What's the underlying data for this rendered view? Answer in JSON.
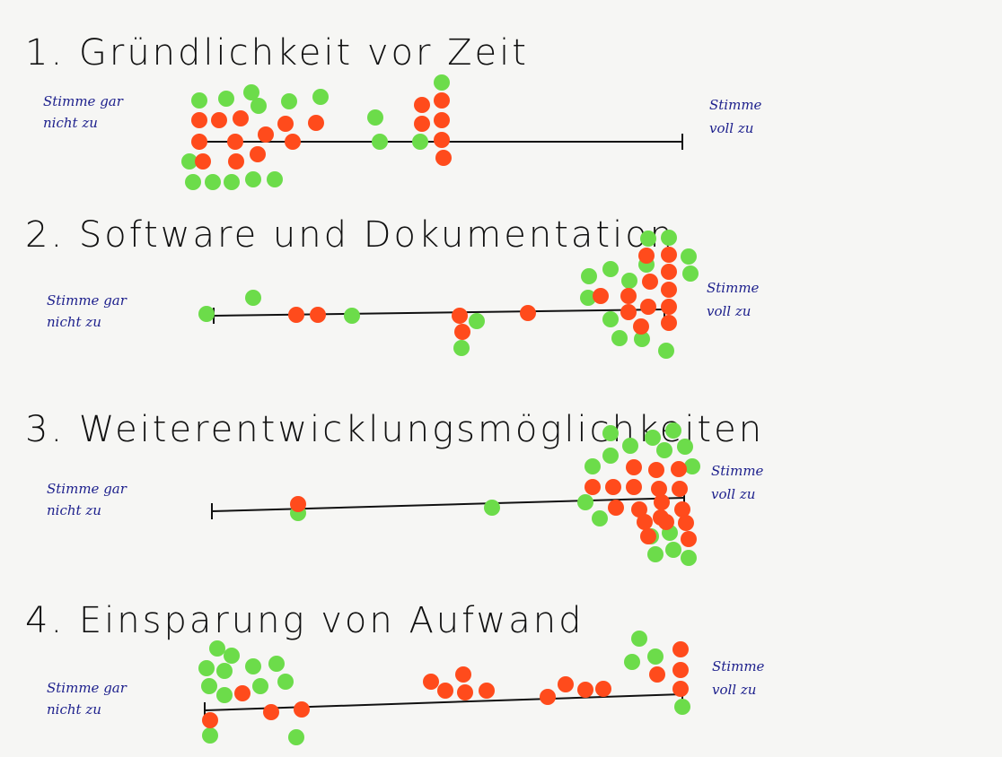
{
  "sections": [
    {
      "title": "1. Gründlichkeit vor Zeit",
      "left_label": [
        "Stimme gar",
        "nicht zu"
      ],
      "right_label": [
        "Stimme",
        "voll zu"
      ]
    },
    {
      "title": "2. Software und Dokumentation",
      "left_label": [
        "Stimme gar",
        "nicht zu"
      ],
      "right_label": [
        "Stimme",
        "voll zu"
      ]
    },
    {
      "title": "3. Weiterentwicklungsmöglichkeiten",
      "left_label": [
        "Stimme gar",
        "nicht zu"
      ],
      "right_label": [
        "Stimme",
        "voll zu"
      ]
    },
    {
      "title": "4. Einsparung von Aufwand",
      "left_label": [
        "Stimme gar",
        "nicht zu"
      ],
      "right_label": [
        "Stimme",
        "voll zu"
      ]
    }
  ]
}
